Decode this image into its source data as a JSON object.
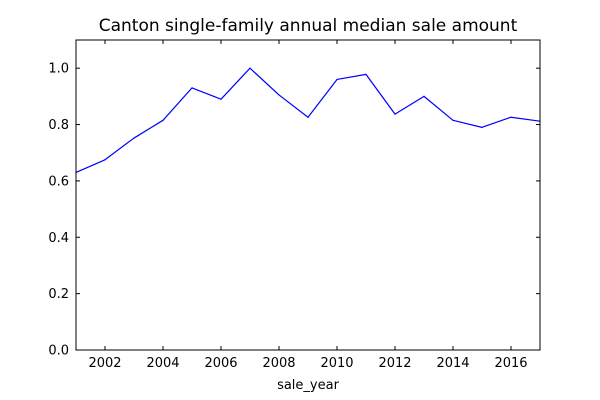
{
  "chart_data": {
    "type": "line",
    "title": "Canton single-family annual median sale amount",
    "xlabel": "sale_year",
    "ylabel": "",
    "xlim": [
      2001,
      2017
    ],
    "ylim": [
      0.0,
      1.1
    ],
    "xticks": [
      2002,
      2004,
      2006,
      2008,
      2010,
      2012,
      2014,
      2016
    ],
    "yticks": [
      0.0,
      0.2,
      0.4,
      0.6,
      0.8,
      1.0
    ],
    "ytick_labels": [
      "0.0",
      "0.2",
      "0.4",
      "0.6",
      "0.8",
      "1.0"
    ],
    "grid": false,
    "legend": "none",
    "series": [
      {
        "color": "#0000ff",
        "x": [
          2001,
          2002,
          2003,
          2004,
          2005,
          2006,
          2007,
          2008,
          2009,
          2010,
          2011,
          2012,
          2013,
          2014,
          2015,
          2016,
          2017
        ],
        "y": [
          0.63,
          0.675,
          0.752,
          0.815,
          0.93,
          0.89,
          1.0,
          0.905,
          0.826,
          0.96,
          0.978,
          0.837,
          0.9,
          0.815,
          0.79,
          0.826,
          0.812
        ]
      }
    ]
  }
}
